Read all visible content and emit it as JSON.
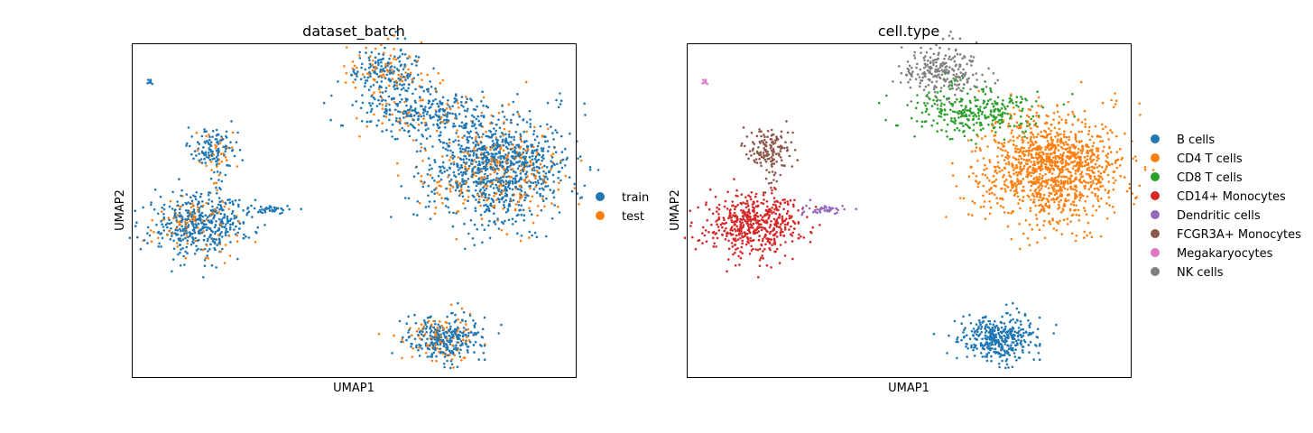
{
  "chart_data": [
    {
      "type": "scatter",
      "title": "dataset_batch",
      "xlabel": "UMAP1",
      "ylabel": "UMAP2",
      "xticks": false,
      "yticks": false,
      "grid": false,
      "legend_position": "right",
      "series": [
        {
          "name": "train",
          "color": "#1f77b4"
        },
        {
          "name": "test",
          "color": "#ff7f0e"
        }
      ],
      "clusters": [
        {
          "label": "NK cells",
          "x": 4.0,
          "y": 9.6,
          "n": 240,
          "train_frac": 0.7
        },
        {
          "label": "CD8 T cells",
          "x": 5.5,
          "y": 7.4,
          "n": 300,
          "train_frac": 0.8
        },
        {
          "label": "CD4 T cells",
          "x": 8.9,
          "y": 4.5,
          "n": 1200,
          "train_frac": 0.75
        },
        {
          "label": "B cells",
          "x": 6.5,
          "y": -4.5,
          "n": 380,
          "train_frac": 0.75
        },
        {
          "label": "CD14+ Monocytes",
          "x": -4.5,
          "y": 1.5,
          "n": 520,
          "train_frac": 0.82
        },
        {
          "label": "FCGR3A+ Monocytes",
          "x": -3.8,
          "y": 5.4,
          "n": 150,
          "train_frac": 0.8
        },
        {
          "label": "Dendritic cells",
          "x": -1.2,
          "y": 2.3,
          "n": 40,
          "train_frac": 0.9
        },
        {
          "label": "Megakaryocytes",
          "x": -6.7,
          "y": 9.0,
          "n": 10,
          "train_frac": 0.9
        }
      ],
      "xlim": [
        -7.5,
        12.5
      ],
      "ylim": [
        -6.5,
        11.0
      ]
    },
    {
      "type": "scatter",
      "title": "cell.type",
      "xlabel": "UMAP1",
      "ylabel": "UMAP2",
      "xticks": false,
      "yticks": false,
      "grid": false,
      "legend_position": "right",
      "series": [
        {
          "name": "B cells",
          "color": "#1f77b4"
        },
        {
          "name": "CD4 T cells",
          "color": "#ff7f0e"
        },
        {
          "name": "CD8 T cells",
          "color": "#2ca02c"
        },
        {
          "name": "CD14+ Monocytes",
          "color": "#d62728"
        },
        {
          "name": "Dendritic cells",
          "color": "#9467bd"
        },
        {
          "name": "FCGR3A+ Monocytes",
          "color": "#8c564b"
        },
        {
          "name": "Megakaryocytes",
          "color": "#e377c2"
        },
        {
          "name": "NK cells",
          "color": "#7f7f7f"
        }
      ],
      "xlim": [
        -7.5,
        12.5
      ],
      "ylim": [
        -6.5,
        11.0
      ]
    }
  ]
}
